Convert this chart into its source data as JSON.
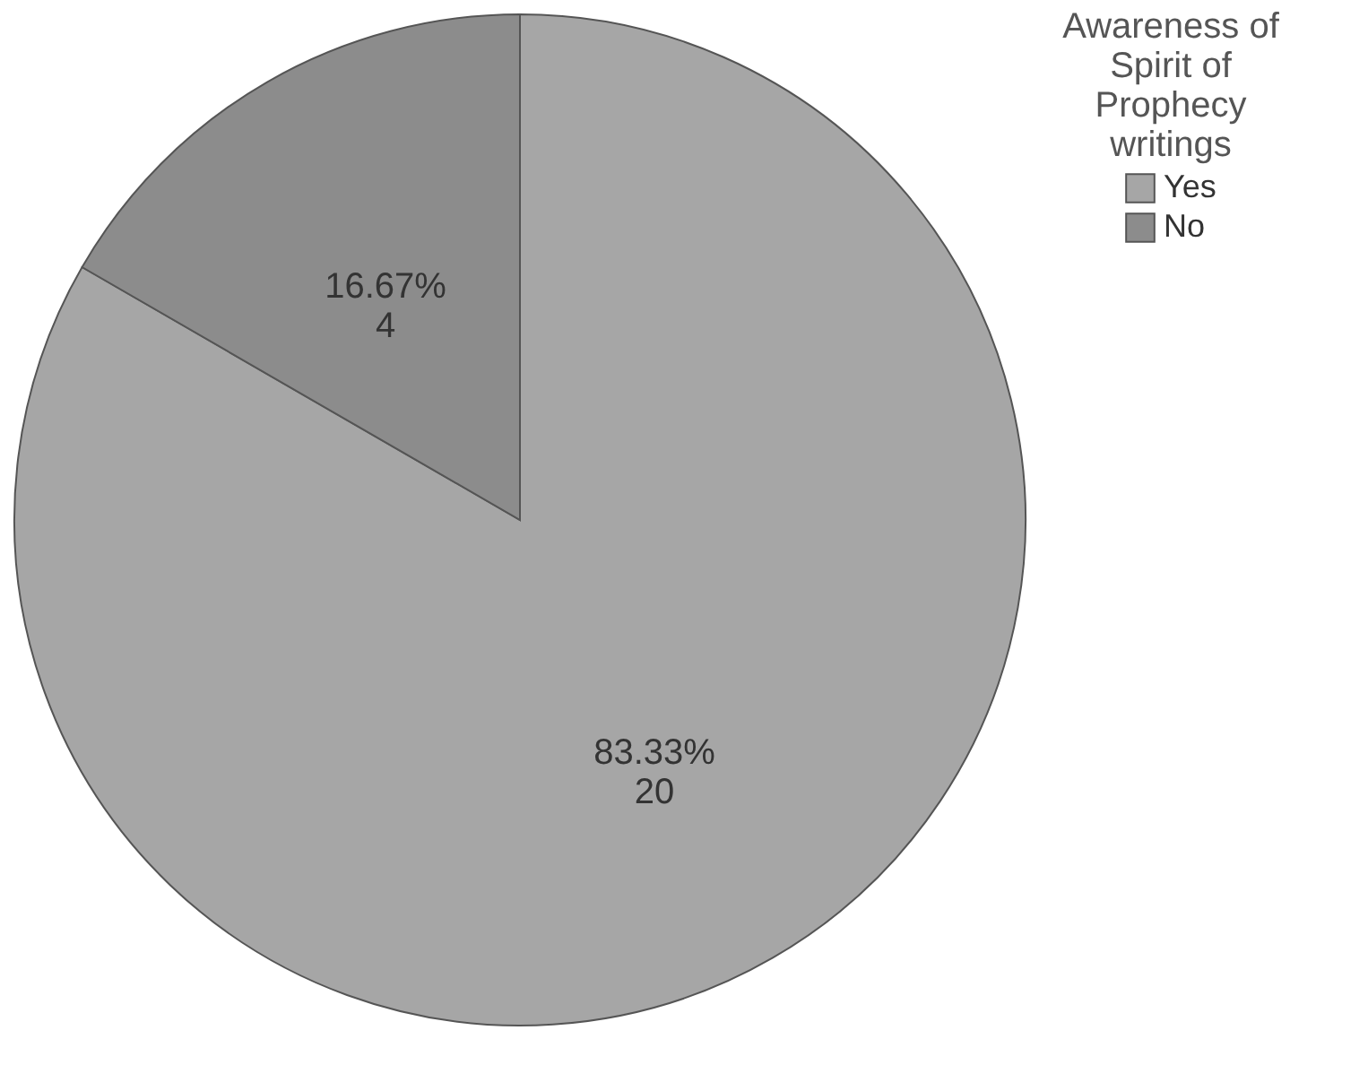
{
  "chart_data": {
    "type": "pie",
    "legend_title": "Awareness of Spirit of Prophecy writings",
    "categories": [
      "Yes",
      "No"
    ],
    "values": [
      20,
      4
    ],
    "colors": [
      "#a6a6a6",
      "#8c8c8c"
    ],
    "value_labels": [
      "83.33%\n20",
      "16.67%\n4"
    ],
    "legend": "top right"
  }
}
